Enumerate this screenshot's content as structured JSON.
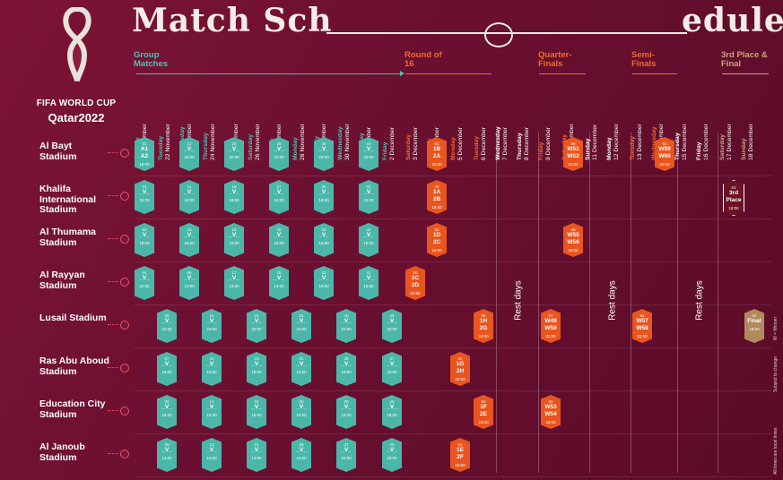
{
  "logo": {
    "brand": "FIFA WORLD CUP",
    "host": "Qatar2022"
  },
  "title": {
    "left": "Match Sch",
    "right": "edule"
  },
  "stages": [
    {
      "label": "Group Matches",
      "color": "#4fc1b0"
    },
    {
      "label": "Round of 16",
      "color": "#ef6a2e"
    },
    {
      "label": "Quarter-Finals",
      "color": "#ef6a2e"
    },
    {
      "label": "Semi-Finals",
      "color": "#ef6a2e"
    },
    {
      "label": "3rd Place & Final",
      "color": "#c9a57a"
    }
  ],
  "dates": [
    {
      "day": "Monday",
      "date": "21 November"
    },
    {
      "day": "Tuesday",
      "date": "22 November"
    },
    {
      "day": "Wednesday",
      "date": "23 November"
    },
    {
      "day": "Thursday",
      "date": "24 November"
    },
    {
      "day": "Friday",
      "date": "25 November"
    },
    {
      "day": "Saturday",
      "date": "26 November"
    },
    {
      "day": "Sunday",
      "date": "27 November"
    },
    {
      "day": "Monday",
      "date": "28 November"
    },
    {
      "day": "Tuesday",
      "date": "29 November"
    },
    {
      "day": "Wednesday",
      "date": "30 November"
    },
    {
      "day": "Thursday",
      "date": "1 December"
    },
    {
      "day": "Friday",
      "date": "2 December"
    },
    {
      "day": "Saturday",
      "date": "3 December"
    },
    {
      "day": "Sunday",
      "date": "4 December"
    },
    {
      "day": "Monday",
      "date": "5 December"
    },
    {
      "day": "Tuesday",
      "date": "6 December"
    },
    {
      "day": "Wednesday",
      "date": "7 December"
    },
    {
      "day": "Thursday",
      "date": "8 December"
    },
    {
      "day": "Friday",
      "date": "9 December"
    },
    {
      "day": "Saturday",
      "date": "10 December"
    },
    {
      "day": "Sunday",
      "date": "11 December"
    },
    {
      "day": "Monday",
      "date": "12 December"
    },
    {
      "day": "Tuesday",
      "date": "13 December"
    },
    {
      "day": "Wednesday",
      "date": "14 December"
    },
    {
      "day": "Thursday",
      "date": "15 December"
    },
    {
      "day": "Friday",
      "date": "16 December"
    },
    {
      "day": "Saturday",
      "date": "17 December"
    },
    {
      "day": "Sunday",
      "date": "18 December"
    }
  ],
  "stadiums": [
    {
      "name": "Al Bayt Stadium"
    },
    {
      "name": "Khalifa International Stadium"
    },
    {
      "name": "Al Thumama Stadium"
    },
    {
      "name": "Al Rayyan Stadium"
    },
    {
      "name": "Lusail Stadium"
    },
    {
      "name": "Ras Abu Aboud Stadium"
    },
    {
      "name": "Education City Stadium"
    },
    {
      "name": "Al Janoub Stadium"
    }
  ],
  "rest_days_label": "Rest days",
  "notes": {
    "winner": "W = Winner",
    "change": "Subject to change",
    "times": "All times are local times"
  },
  "colors": {
    "group": "#4bb7a8",
    "knockout": "#e9551e",
    "final": "#b08a5c",
    "background": "#6a0f30"
  },
  "matches": [
    {
      "stadium": 0,
      "col": 0,
      "type": "g",
      "num": "01",
      "line1": "A1",
      "line2": "A2",
      "time": "19:00"
    },
    {
      "stadium": 0,
      "col": 1,
      "type": "g",
      "num": "12",
      "line1": "_V_",
      "line2": "",
      "time": "22:00"
    },
    {
      "stadium": 0,
      "col": 2,
      "type": "g",
      "num": "20",
      "line1": "_V_",
      "line2": "",
      "time": "22:00"
    },
    {
      "stadium": 0,
      "col": 3,
      "type": "g",
      "num": "28",
      "line1": "_V_",
      "line2": "",
      "time": "22:00"
    },
    {
      "stadium": 0,
      "col": 4,
      "type": "g",
      "num": "36",
      "line1": "_V_",
      "line2": "",
      "time": "22:00"
    },
    {
      "stadium": 0,
      "col": 5,
      "type": "g",
      "num": "44",
      "line1": "_V_",
      "line2": "",
      "time": "22:00"
    },
    {
      "stadium": 0,
      "col": 6,
      "type": "k",
      "num": "51",
      "line1": "1B",
      "line2": "2A",
      "time": "22:00"
    },
    {
      "stadium": 0,
      "col": 7,
      "type": "k",
      "num": "58",
      "line1": "W51",
      "line2": "W52",
      "time": "22:00"
    },
    {
      "stadium": 0,
      "col": 8,
      "type": "k",
      "num": "62",
      "line1": "W59",
      "line2": "W60",
      "time": "22:00"
    },
    {
      "stadium": 1,
      "col": 0,
      "type": "g",
      "num": "03",
      "line1": "_V_",
      "line2": "",
      "time": "16:00"
    },
    {
      "stadium": 1,
      "col": 1,
      "type": "g",
      "num": "11",
      "line1": "_V_",
      "line2": "",
      "time": "19:00"
    },
    {
      "stadium": 1,
      "col": 2,
      "type": "g",
      "num": "19",
      "line1": "_V_",
      "line2": "",
      "time": "19:00"
    },
    {
      "stadium": 1,
      "col": 3,
      "type": "g",
      "num": "27",
      "line1": "_V_",
      "line2": "",
      "time": "19:00"
    },
    {
      "stadium": 1,
      "col": 4,
      "type": "g",
      "num": "35",
      "line1": "_V_",
      "line2": "",
      "time": "19:00"
    },
    {
      "stadium": 1,
      "col": 5,
      "type": "g",
      "num": "43",
      "line1": "_V_",
      "line2": "",
      "time": "22:00"
    },
    {
      "stadium": 1,
      "col": 6,
      "type": "k",
      "num": "49",
      "line1": "1A",
      "line2": "2B",
      "time": "18:00"
    },
    {
      "stadium": 1,
      "col": 9,
      "type": "t",
      "num": "63",
      "line1": "3rd",
      "line2": "Place",
      "time": "18:00"
    },
    {
      "stadium": 2,
      "col": 0,
      "type": "g",
      "num": "02",
      "line1": "_V_",
      "line2": "",
      "time": "19:00"
    },
    {
      "stadium": 2,
      "col": 1,
      "type": "g",
      "num": "10",
      "line1": "_V_",
      "line2": "",
      "time": "16:00"
    },
    {
      "stadium": 2,
      "col": 2,
      "type": "g",
      "num": "18",
      "line1": "_V_",
      "line2": "",
      "time": "16:00"
    },
    {
      "stadium": 2,
      "col": 3,
      "type": "g",
      "num": "26",
      "line1": "_V_",
      "line2": "",
      "time": "16:00"
    },
    {
      "stadium": 2,
      "col": 4,
      "type": "g",
      "num": "34",
      "line1": "_V_",
      "line2": "",
      "time": "16:00"
    },
    {
      "stadium": 2,
      "col": 5,
      "type": "g",
      "num": "42",
      "line1": "_V_",
      "line2": "",
      "time": "18:00"
    },
    {
      "stadium": 2,
      "col": 6,
      "type": "k",
      "num": "52",
      "line1": "1D",
      "line2": "2C",
      "time": "18:00"
    },
    {
      "stadium": 2,
      "col": 7,
      "type": "k",
      "num": "59",
      "line1": "W55",
      "line2": "W56",
      "time": "18:00"
    },
    {
      "stadium": 3,
      "col": 0,
      "type": "g",
      "num": "04",
      "line1": "_V_",
      "line2": "",
      "time": "22:00"
    },
    {
      "stadium": 3,
      "col": 1,
      "type": "g",
      "num": "09",
      "line1": "_V_",
      "line2": "",
      "time": "13:00"
    },
    {
      "stadium": 3,
      "col": 2,
      "type": "g",
      "num": "17",
      "line1": "_V_",
      "line2": "",
      "time": "13:00"
    },
    {
      "stadium": 3,
      "col": 3,
      "type": "g",
      "num": "25",
      "line1": "_V_",
      "line2": "",
      "time": "13:00"
    },
    {
      "stadium": 3,
      "col": 4,
      "type": "g",
      "num": "33",
      "line1": "_V_",
      "line2": "",
      "time": "18:00"
    },
    {
      "stadium": 3,
      "col": 5,
      "type": "g",
      "num": "41",
      "line1": "_V_",
      "line2": "",
      "time": "18:00"
    },
    {
      "stadium": 3,
      "col": 6,
      "type": "k",
      "num": "50",
      "line1": "1C",
      "line2": "2D",
      "time": "22:00"
    },
    {
      "stadium": 4,
      "col": 0,
      "type": "g",
      "num": "08",
      "line1": "_V_",
      "line2": "",
      "time": "22:00"
    },
    {
      "stadium": 4,
      "col": 1,
      "type": "g",
      "num": "16",
      "line1": "_V_",
      "line2": "",
      "time": "22:00"
    },
    {
      "stadium": 4,
      "col": 2,
      "type": "g",
      "num": "24",
      "line1": "_V_",
      "line2": "",
      "time": "22:00"
    },
    {
      "stadium": 4,
      "col": 3,
      "type": "g",
      "num": "32",
      "line1": "_V_",
      "line2": "",
      "time": "22:00"
    },
    {
      "stadium": 4,
      "col": 4,
      "type": "g",
      "num": "40",
      "line1": "_V_",
      "line2": "",
      "time": "22:00"
    },
    {
      "stadium": 4,
      "col": 5,
      "type": "g",
      "num": "48",
      "line1": "_V_",
      "line2": "",
      "time": "22:00"
    },
    {
      "stadium": 4,
      "col": 6,
      "type": "k",
      "num": "56",
      "line1": "1H",
      "line2": "2G",
      "time": "22:00"
    },
    {
      "stadium": 4,
      "col": 7,
      "type": "k",
      "num": "57",
      "line1": "W49",
      "line2": "W50",
      "time": "22:00"
    },
    {
      "stadium": 4,
      "col": 8,
      "type": "k",
      "num": "61",
      "line1": "W57",
      "line2": "W58",
      "time": "22:00"
    },
    {
      "stadium": 4,
      "col": 9,
      "type": "f",
      "num": "64",
      "line1": "Final",
      "line2": "",
      "time": "18:00"
    },
    {
      "stadium": 5,
      "col": 0,
      "type": "g",
      "num": "07",
      "line1": "_V_",
      "line2": "",
      "time": "16:00"
    },
    {
      "stadium": 5,
      "col": 1,
      "type": "g",
      "num": "15",
      "line1": "_V_",
      "line2": "",
      "time": "19:00"
    },
    {
      "stadium": 5,
      "col": 2,
      "type": "g",
      "num": "23",
      "line1": "_V_",
      "line2": "",
      "time": "19:00"
    },
    {
      "stadium": 5,
      "col": 3,
      "type": "g",
      "num": "31",
      "line1": "_V_",
      "line2": "",
      "time": "19:00"
    },
    {
      "stadium": 5,
      "col": 4,
      "type": "g",
      "num": "39",
      "line1": "_V_",
      "line2": "",
      "time": "18:00"
    },
    {
      "stadium": 5,
      "col": 5,
      "type": "g",
      "num": "47",
      "line1": "_V_",
      "line2": "",
      "time": "22:00"
    },
    {
      "stadium": 5,
      "col": 6,
      "type": "k",
      "num": "54",
      "line1": "1G",
      "line2": "2H",
      "time": "22:00"
    },
    {
      "stadium": 6,
      "col": 0,
      "type": "g",
      "num": "06",
      "line1": "_V_",
      "line2": "",
      "time": "16:00"
    },
    {
      "stadium": 6,
      "col": 1,
      "type": "g",
      "num": "14",
      "line1": "_V_",
      "line2": "",
      "time": "16:00"
    },
    {
      "stadium": 6,
      "col": 2,
      "type": "g",
      "num": "22",
      "line1": "_V_",
      "line2": "",
      "time": "16:00"
    },
    {
      "stadium": 6,
      "col": 3,
      "type": "g",
      "num": "30",
      "line1": "_V_",
      "line2": "",
      "time": "16:00"
    },
    {
      "stadium": 6,
      "col": 4,
      "type": "g",
      "num": "38",
      "line1": "_V_",
      "line2": "",
      "time": "18:00"
    },
    {
      "stadium": 6,
      "col": 5,
      "type": "g",
      "num": "46",
      "line1": "_V_",
      "line2": "",
      "time": "18:00"
    },
    {
      "stadium": 6,
      "col": 6,
      "type": "k",
      "num": "55",
      "line1": "1F",
      "line2": "2E",
      "time": "18:00"
    },
    {
      "stadium": 6,
      "col": 7,
      "type": "k",
      "num": "60",
      "line1": "W53",
      "line2": "W54",
      "time": "18:00"
    },
    {
      "stadium": 7,
      "col": 0,
      "type": "g",
      "num": "05",
      "line1": "_V_",
      "line2": "",
      "time": "13:00"
    },
    {
      "stadium": 7,
      "col": 1,
      "type": "g",
      "num": "13",
      "line1": "_V_",
      "line2": "",
      "time": "13:00"
    },
    {
      "stadium": 7,
      "col": 2,
      "type": "g",
      "num": "21",
      "line1": "_V_",
      "line2": "",
      "time": "13:00"
    },
    {
      "stadium": 7,
      "col": 3,
      "type": "g",
      "num": "29",
      "line1": "_V_",
      "line2": "",
      "time": "13:00"
    },
    {
      "stadium": 7,
      "col": 4,
      "type": "g",
      "num": "37",
      "line1": "_V_",
      "line2": "",
      "time": "22:00"
    },
    {
      "stadium": 7,
      "col": 5,
      "type": "g",
      "num": "45",
      "line1": "_V_",
      "line2": "",
      "time": "18:00"
    },
    {
      "stadium": 7,
      "col": 6,
      "type": "k",
      "num": "53",
      "line1": "1E",
      "line2": "2F",
      "time": "18:00"
    }
  ]
}
